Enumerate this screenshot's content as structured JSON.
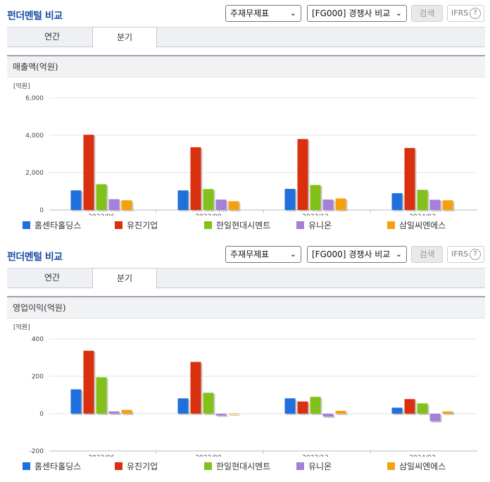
{
  "toolbar": {
    "statement_select": "주재무제표",
    "compare_select": "[FG000] 경쟁사 비교",
    "search_label": "검색",
    "ifrs_label": "IFRS",
    "help_label": "?"
  },
  "panels": [
    {
      "title": "펀더멘털 비교",
      "tabs": [
        "연간",
        "분기"
      ],
      "active_tab": "분기",
      "chart_title": "매출액(억원)"
    },
    {
      "title": "펀더멘털 비교",
      "tabs": [
        "연간",
        "분기"
      ],
      "active_tab": "분기",
      "chart_title": "영업이익(억원)"
    }
  ],
  "chart_data": [
    {
      "type": "bar",
      "title": "매출액(억원)",
      "unit_label": "[억원]",
      "categories": [
        "2023/06",
        "2023/09",
        "2023/12",
        "2024/03"
      ],
      "yticks": [
        "6,000",
        "4,000",
        "2,000",
        "0"
      ],
      "ylim": [
        0,
        6000
      ],
      "series": [
        {
          "name": "홈센타홀딩스",
          "color": "#1f6fdc",
          "values": [
            1050,
            1050,
            1130,
            900
          ]
        },
        {
          "name": "유진기업",
          "color": "#d9310f",
          "values": [
            4030,
            3360,
            3800,
            3320
          ]
        },
        {
          "name": "한일현대시멘트",
          "color": "#82c01a",
          "values": [
            1380,
            1120,
            1340,
            1080
          ]
        },
        {
          "name": "유니온",
          "color": "#a57fd8",
          "values": [
            580,
            560,
            560,
            550
          ]
        },
        {
          "name": "삼일씨엔에스",
          "color": "#f5a00f",
          "values": [
            520,
            470,
            620,
            520
          ]
        }
      ],
      "legend": "bottom"
    },
    {
      "type": "bar",
      "title": "영업이익(억원)",
      "unit_label": "[억원]",
      "categories": [
        "2023/06",
        "2023/09",
        "2023/12",
        "2024/03"
      ],
      "yticks": [
        "400",
        "200",
        "0",
        "-200"
      ],
      "ylim": [
        -200,
        400
      ],
      "series": [
        {
          "name": "홈센타홀딩스",
          "color": "#1f6fdc",
          "values": [
            130,
            82,
            82,
            32
          ]
        },
        {
          "name": "유진기업",
          "color": "#d9310f",
          "values": [
            337,
            277,
            65,
            78
          ]
        },
        {
          "name": "한일현대시멘트",
          "color": "#82c01a",
          "values": [
            195,
            112,
            90,
            55
          ]
        },
        {
          "name": "유니온",
          "color": "#a57fd8",
          "values": [
            12,
            -10,
            -15,
            -40
          ]
        },
        {
          "name": "삼일씨엔에스",
          "color": "#f5a00f",
          "values": [
            20,
            0,
            15,
            12
          ]
        }
      ],
      "legend": "bottom"
    }
  ]
}
